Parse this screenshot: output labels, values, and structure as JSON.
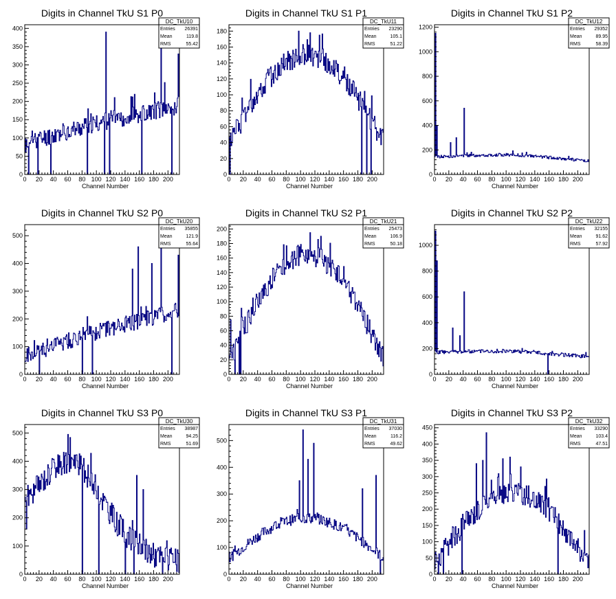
{
  "style": {
    "line_color": "#000080",
    "frame_color": "#000000",
    "background": "#ffffff"
  },
  "chart_data": [
    {
      "type": "line",
      "title": "Digits in Channel TkU S1 P0",
      "xlabel": "Channel Number",
      "ylabel": "",
      "xlim": [
        0,
        216
      ],
      "ylim": [
        0,
        410
      ],
      "xticks": [
        0,
        20,
        40,
        60,
        80,
        100,
        120,
        140,
        160,
        180,
        200
      ],
      "yticks": [
        0,
        50,
        100,
        150,
        200,
        250,
        300,
        350,
        400
      ],
      "stats": {
        "name": "DC_TkU10",
        "entries": "26391",
        "mean": "119.8",
        "rms": "55.42"
      },
      "seed": 11,
      "profile": "rising",
      "base": 80,
      "peak": 190,
      "noise": 25,
      "spikes": [
        [
          113,
          390
        ],
        [
          190,
          370
        ],
        [
          214,
          330
        ],
        [
          88,
          180
        ],
        [
          120,
          175
        ]
      ],
      "zeros": [
        5,
        18,
        36,
        87,
        111,
        118,
        163,
        205
      ]
    },
    {
      "type": "line",
      "title": "Digits in Channel TkU S1 P1",
      "xlabel": "Channel Number",
      "ylabel": "",
      "xlim": [
        0,
        216
      ],
      "ylim": [
        0,
        188
      ],
      "xticks": [
        0,
        20,
        40,
        60,
        80,
        100,
        120,
        140,
        160,
        180,
        200
      ],
      "yticks": [
        0,
        20,
        40,
        60,
        80,
        100,
        120,
        140,
        160,
        180
      ],
      "stats": {
        "name": "DC_TkU11",
        "entries": "23290",
        "mean": "105.1",
        "rms": "51.22"
      },
      "seed": 12,
      "profile": "dome",
      "base": 40,
      "peak": 150,
      "noise": 14,
      "spikes": [
        [
          97,
          180
        ],
        [
          113,
          178
        ],
        [
          126,
          175
        ]
      ],
      "zeros": [
        1,
        185,
        192,
        198
      ]
    },
    {
      "type": "line",
      "title": "Digits in Channel TkU S1 P2",
      "xlabel": "Channel Number",
      "ylabel": "",
      "xlim": [
        0,
        216
      ],
      "ylim": [
        0,
        1220
      ],
      "xticks": [
        0,
        20,
        40,
        60,
        80,
        100,
        120,
        140,
        160,
        180,
        200
      ],
      "yticks": [
        0,
        200,
        400,
        600,
        800,
        1000,
        1200
      ],
      "stats": {
        "name": "DC_TkU12",
        "entries": "29352",
        "mean": "89.95",
        "rms": "58.39"
      },
      "seed": 13,
      "profile": "flatfall",
      "base": 140,
      "peak": 160,
      "noise": 12,
      "spikes": [
        [
          1,
          1150
        ],
        [
          3,
          400
        ],
        [
          41,
          540
        ],
        [
          22,
          260
        ],
        [
          30,
          300
        ]
      ],
      "zeros": []
    },
    {
      "type": "line",
      "title": "Digits in Channel TkU S2 P0",
      "xlabel": "Channel Number",
      "ylabel": "",
      "xlim": [
        0,
        216
      ],
      "ylim": [
        0,
        540
      ],
      "xticks": [
        0,
        20,
        40,
        60,
        80,
        100,
        120,
        140,
        160,
        180,
        200
      ],
      "yticks": [
        0,
        100,
        200,
        300,
        400,
        500
      ],
      "stats": {
        "name": "DC_TkU20",
        "entries": "35855",
        "mean": "121.9",
        "rms": "55.64"
      },
      "seed": 21,
      "profile": "rising",
      "base": 60,
      "peak": 230,
      "noise": 30,
      "spikes": [
        [
          190,
          520
        ],
        [
          158,
          460
        ],
        [
          214,
          430
        ],
        [
          177,
          400
        ],
        [
          150,
          380
        ]
      ],
      "zeros": [
        20,
        80,
        94,
        205
      ]
    },
    {
      "type": "line",
      "title": "Digits in Channel TkU S2 P1",
      "xlabel": "Channel Number",
      "ylabel": "",
      "xlim": [
        0,
        216
      ],
      "ylim": [
        0,
        206
      ],
      "xticks": [
        0,
        20,
        40,
        60,
        80,
        100,
        120,
        140,
        160,
        180,
        200
      ],
      "yticks": [
        0,
        20,
        40,
        60,
        80,
        100,
        120,
        140,
        160,
        180,
        200
      ],
      "stats": {
        "name": "DC_TkU21",
        "entries": "25473",
        "mean": "106.9",
        "rms": "50.18"
      },
      "seed": 22,
      "profile": "dome",
      "base": 20,
      "peak": 165,
      "noise": 15,
      "spikes": [
        [
          113,
          195
        ],
        [
          128,
          190
        ],
        [
          2,
          75
        ]
      ],
      "zeros": [
        8,
        14,
        16
      ]
    },
    {
      "type": "line",
      "title": "Digits in Channel TkU S2 P2",
      "xlabel": "Channel Number",
      "ylabel": "",
      "xlim": [
        0,
        216
      ],
      "ylim": [
        0,
        1160
      ],
      "xticks": [
        0,
        20,
        40,
        60,
        80,
        100,
        120,
        140,
        160,
        180,
        200
      ],
      "yticks": [
        0,
        200,
        400,
        600,
        800,
        1000
      ],
      "stats": {
        "name": "DC_TkU22",
        "entries": "32155",
        "mean": "91.62",
        "rms": "57.92"
      },
      "seed": 23,
      "profile": "flatfall",
      "base": 170,
      "peak": 180,
      "noise": 14,
      "spikes": [
        [
          1,
          1110
        ],
        [
          3,
          880
        ],
        [
          41,
          640
        ],
        [
          25,
          360
        ],
        [
          35,
          300
        ],
        [
          211,
          170
        ]
      ],
      "zeros": [
        158
      ]
    },
    {
      "type": "line",
      "title": "Digits in Channel TkU S3 P0",
      "xlabel": "Channel Number",
      "ylabel": "",
      "xlim": [
        0,
        216
      ],
      "ylim": [
        0,
        530
      ],
      "xticks": [
        0,
        20,
        40,
        60,
        80,
        100,
        120,
        140,
        160,
        180,
        200
      ],
      "yticks": [
        0,
        100,
        200,
        300,
        400,
        500
      ],
      "stats": {
        "name": "DC_TkU30",
        "entries": "38987",
        "mean": "94.25",
        "rms": "51.69"
      },
      "seed": 31,
      "profile": "early",
      "base": 140,
      "peak": 260,
      "noise": 45,
      "spikes": [
        [
          60,
          495
        ],
        [
          38,
          410
        ],
        [
          48,
          420
        ],
        [
          156,
          350
        ],
        [
          165,
          300
        ],
        [
          2,
          160
        ]
      ],
      "zeros": [
        80,
        103,
        140,
        152,
        192
      ]
    },
    {
      "type": "line",
      "title": "Digits in Channel TkU S3 P1",
      "xlabel": "Channel Number",
      "ylabel": "",
      "xlim": [
        0,
        216
      ],
      "ylim": [
        0,
        560
      ],
      "xticks": [
        0,
        20,
        40,
        60,
        80,
        100,
        120,
        140,
        160,
        180,
        200
      ],
      "yticks": [
        0,
        100,
        200,
        300,
        400,
        500
      ],
      "stats": {
        "name": "DC_TkU31",
        "entries": "37030",
        "mean": "116.2",
        "rms": "49.62"
      },
      "seed": 32,
      "profile": "dome",
      "base": 60,
      "peak": 210,
      "noise": 20,
      "spikes": [
        [
          103,
          540
        ],
        [
          110,
          430
        ],
        [
          118,
          490
        ],
        [
          98,
          350
        ],
        [
          186,
          320
        ],
        [
          205,
          370
        ]
      ],
      "zeros": [
        211
      ]
    },
    {
      "type": "line",
      "title": "Digits in Channel TkU S3 P2",
      "xlabel": "Channel Number",
      "ylabel": "",
      "xlim": [
        0,
        216
      ],
      "ylim": [
        0,
        460
      ],
      "xticks": [
        0,
        20,
        40,
        60,
        80,
        100,
        120,
        140,
        160,
        180,
        200
      ],
      "yticks": [
        0,
        50,
        100,
        150,
        200,
        250,
        300,
        350,
        400,
        450
      ],
      "stats": {
        "name": "DC_TkU32",
        "entries": "33290",
        "mean": "103.4",
        "rms": "47.51"
      },
      "seed": 33,
      "profile": "dome",
      "base": 30,
      "peak": 250,
      "noise": 35,
      "spikes": [
        [
          72,
          435
        ],
        [
          58,
          340
        ],
        [
          67,
          350
        ],
        [
          95,
          355
        ],
        [
          105,
          360
        ],
        [
          120,
          330
        ]
      ],
      "zeros": [
        5,
        12,
        38,
        172
      ]
    }
  ]
}
